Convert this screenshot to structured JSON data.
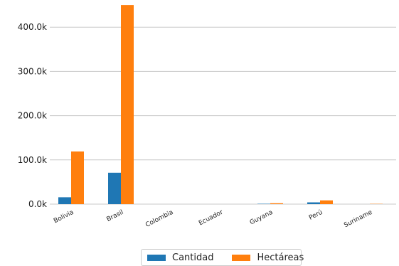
{
  "chart_data": {
    "type": "bar",
    "title": "",
    "xlabel": "",
    "ylabel": "",
    "categories": [
      "Bolivia",
      "Brasil",
      "Colombia",
      "Ecuador",
      "Guyana",
      "Perú",
      "Suriname"
    ],
    "series": [
      {
        "name": "Cantidad",
        "color": "#1f77b4",
        "values": [
          15500,
          71000,
          0,
          0,
          800,
          4000,
          0
        ]
      },
      {
        "name": "Hectáreas",
        "color": "#ff7f0e",
        "values": [
          119000,
          450000,
          0,
          0,
          2000,
          8500,
          600
        ]
      }
    ],
    "ylim": [
      0,
      450000
    ],
    "yticks": [
      0,
      100000,
      200000,
      300000,
      400000
    ],
    "ytick_labels": [
      "0.0k",
      "100.0k",
      "200.0k",
      "300.0k",
      "400.0k"
    ],
    "grid": "horizontal",
    "legend_position": "bottom-center"
  }
}
